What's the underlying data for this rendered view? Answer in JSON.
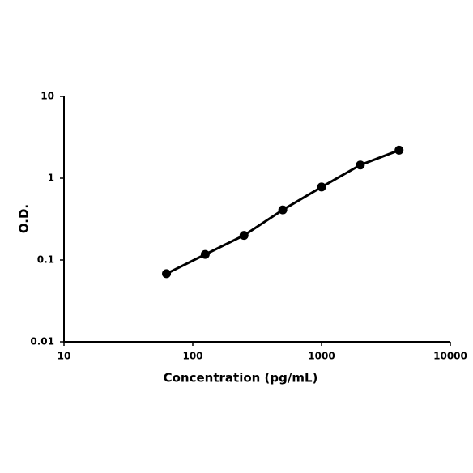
{
  "chart_data": {
    "type": "line",
    "xlabel": "Concentration (pg/mL)",
    "ylabel": "O.D.",
    "x": [
      62.5,
      125,
      250,
      500,
      1000,
      2000,
      4000
    ],
    "series": [
      {
        "color": "#000000",
        "values": [
          0.068,
          0.117,
          0.2,
          0.41,
          0.78,
          1.45,
          2.2
        ]
      }
    ],
    "xlim": [
      10,
      10000
    ],
    "xticks": [
      10,
      100,
      1000,
      10000
    ],
    "ylim": [
      0.01,
      10
    ],
    "yticks": [
      0.01,
      0.1,
      1,
      10
    ],
    "xscale": "log",
    "yscale": "log",
    "grid": false,
    "markers": true
  }
}
